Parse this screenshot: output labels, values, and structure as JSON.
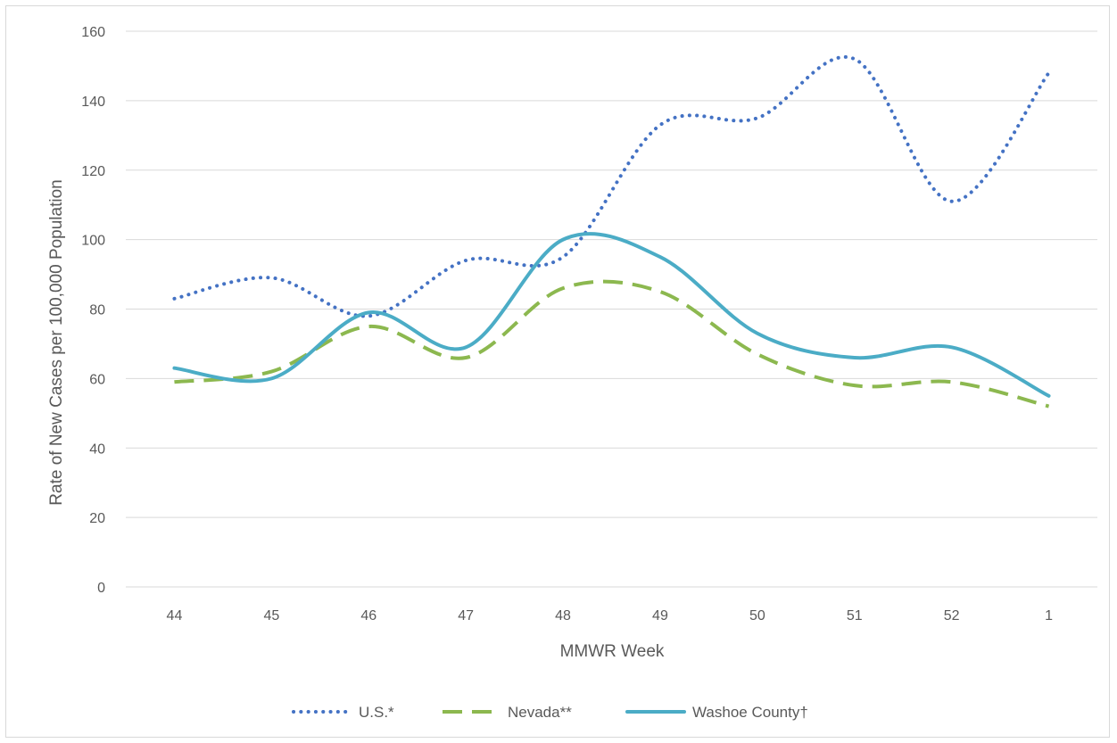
{
  "chart_data": {
    "type": "line",
    "title": "",
    "xlabel": "MMWR Week",
    "ylabel": "Rate of New Cases per 100,000 Population",
    "categories": [
      "44",
      "45",
      "46",
      "47",
      "48",
      "49",
      "50",
      "51",
      "52",
      "1"
    ],
    "ylim": [
      0,
      160
    ],
    "yticks": [
      0,
      20,
      40,
      60,
      80,
      100,
      120,
      140,
      160
    ],
    "ytick_labels": [
      "0",
      "20",
      "40",
      "60",
      "80",
      "100",
      "120",
      "140",
      "160"
    ],
    "grid": true,
    "legend_position": "bottom",
    "series": [
      {
        "name": "U.S.*",
        "values": [
          83,
          89,
          78,
          94,
          95,
          133,
          135,
          152,
          111,
          148
        ],
        "color": "#4472C4",
        "style": "dotted"
      },
      {
        "name": "Nevada**",
        "values": [
          59,
          62,
          75,
          66,
          86,
          85,
          67,
          58,
          59,
          52
        ],
        "color": "#8CB84F",
        "style": "dashed"
      },
      {
        "name": "Washoe County†",
        "values": [
          63,
          60,
          79,
          69,
          100,
          95,
          73,
          66,
          69,
          55
        ],
        "color": "#4BACC6",
        "style": "solid"
      }
    ]
  }
}
